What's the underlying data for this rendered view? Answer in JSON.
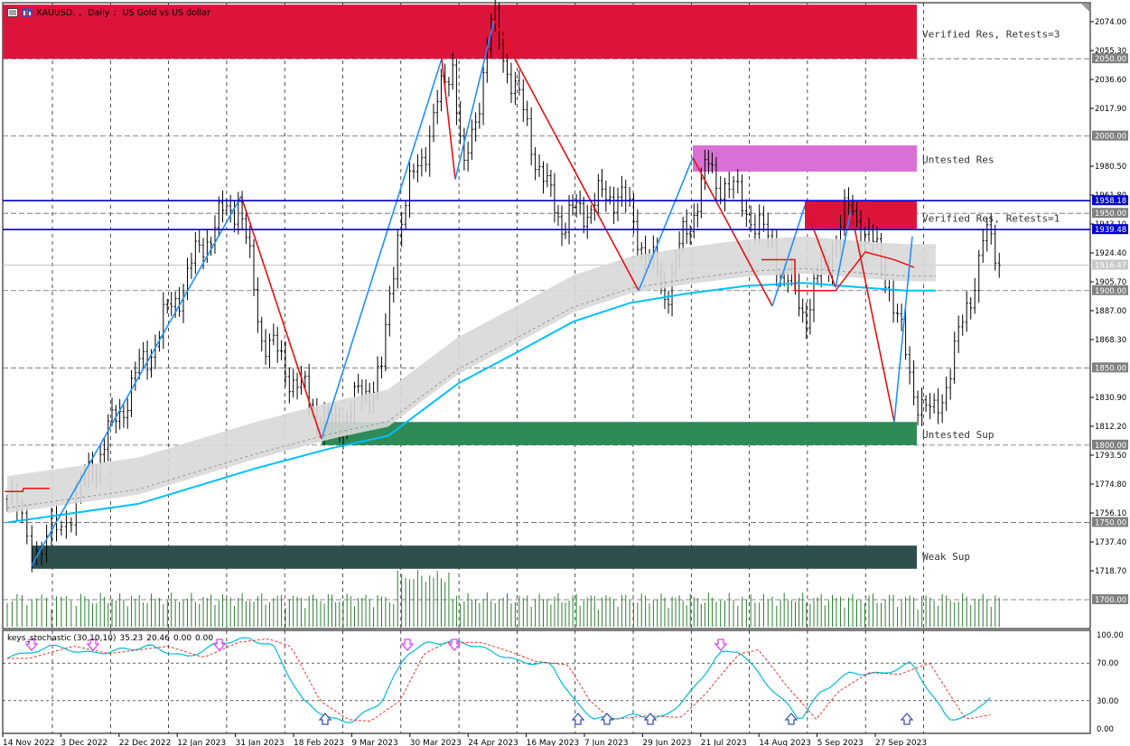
{
  "window": {
    "symbol": "XAUUSD.",
    "timeframe": "Daily",
    "description": "US Gold vs US dollar"
  },
  "oscillator": {
    "name": "keys_stochastic (30,10,10)",
    "values": [
      "35.23",
      "20.46",
      "0.00",
      "0.00"
    ],
    "levels": [
      "100.00",
      "70.00",
      "30.00",
      "0.00"
    ]
  },
  "price_labels": [
    "2074.00",
    "2055.30",
    "2036.60",
    "2017.90",
    "1980.50",
    "1961.80",
    "1943.10",
    "1924.40",
    "1905.70",
    "1887.00",
    "1868.30",
    "1830.90",
    "1812.20",
    "1793.50",
    "1774.80",
    "1756.10",
    "1737.40",
    "1718.70"
  ],
  "level_labels": [
    {
      "value": "2050.00",
      "style": "gray"
    },
    {
      "value": "2000.00",
      "style": "gray"
    },
    {
      "value": "1958.18",
      "style": "blue"
    },
    {
      "value": "1950.00",
      "style": "gray"
    },
    {
      "value": "1939.48",
      "style": "blue"
    },
    {
      "value": "1916.47",
      "style": "lightgray"
    },
    {
      "value": "1900.00",
      "style": "gray"
    },
    {
      "value": "1850.00",
      "style": "gray"
    },
    {
      "value": "1800.00",
      "style": "gray"
    },
    {
      "value": "1750.00",
      "style": "gray"
    },
    {
      "value": "1700.00",
      "style": "gray"
    }
  ],
  "date_labels": [
    "14 Nov 2022",
    "3 Dec 2022",
    "22 Dec 2022",
    "12 Jan 2023",
    "31 Jan 2023",
    "18 Feb 2023",
    "9 Mar 2023",
    "30 Mar 2023",
    "24 Apr 2023",
    "16 May 2023",
    "7 Jun 2023",
    "29 Jun 2023",
    "21 Jul 2023",
    "14 Aug 2023",
    "5 Sep 2023",
    "27 Sep 2023"
  ],
  "zones": [
    {
      "label": "Verified Res, Retests=3",
      "color": "#dc143c"
    },
    {
      "label": "Untested Res",
      "color": "#da70d6"
    },
    {
      "label": "Verified Res, Retests=1",
      "color": "#dc143c"
    },
    {
      "label": "Untested Sup",
      "color": "#2e8b57"
    },
    {
      "label": "Weak Sup",
      "color": "#2f4f4f"
    }
  ],
  "colors": {
    "bull_bear": "#000000",
    "zigzag_up": "#1e90ff",
    "zigzag_down": "#e81010",
    "ma": "#00bfff",
    "band": "#d8d8d8",
    "volume": "#2e7d32",
    "stoch_main": "#00bcd4",
    "stoch_signal": "#e53935",
    "arrow_down": "#e040fb",
    "arrow_up": "#3f51b5",
    "level_line": "#0000cd"
  }
}
